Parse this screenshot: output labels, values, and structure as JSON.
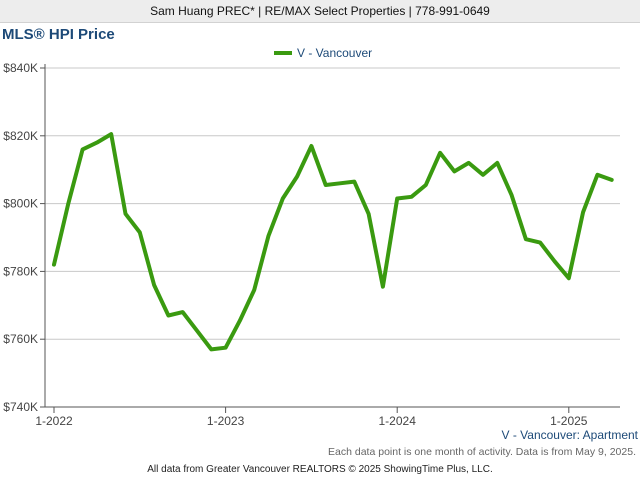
{
  "header": {
    "agent_line": "Sam Huang PREC* | RE/MAX Select Properties | 778-991-0649"
  },
  "chart_data": {
    "type": "line",
    "title": "MLS® HPI Price",
    "legend_position": "top",
    "series": [
      {
        "name": "V - Vancouver",
        "color": "#3a9a10",
        "x": [
          "2022-01",
          "2022-02",
          "2022-03",
          "2022-04",
          "2022-05",
          "2022-06",
          "2022-07",
          "2022-08",
          "2022-09",
          "2022-10",
          "2022-11",
          "2022-12",
          "2023-01",
          "2023-02",
          "2023-03",
          "2023-04",
          "2023-05",
          "2023-06",
          "2023-07",
          "2023-08",
          "2023-09",
          "2023-10",
          "2023-11",
          "2023-12",
          "2024-01",
          "2024-02",
          "2024-03",
          "2024-04",
          "2024-05",
          "2024-06",
          "2024-07",
          "2024-08",
          "2024-09",
          "2024-10",
          "2024-11",
          "2024-12",
          "2025-01",
          "2025-02",
          "2025-03",
          "2025-04"
        ],
        "values": [
          782000,
          800000,
          816000,
          818000,
          820500,
          797000,
          791500,
          776000,
          767000,
          768000,
          762500,
          757000,
          757500,
          765500,
          774500,
          790500,
          801500,
          808000,
          817000,
          805500,
          806000,
          806500,
          797000,
          775500,
          801500,
          802000,
          805500,
          815000,
          809500,
          812000,
          808500,
          812000,
          802500,
          789500,
          788500,
          783000,
          778000,
          797500,
          808500,
          807000
        ]
      }
    ],
    "xlabels": [
      "1-2022",
      "1-2023",
      "1-2024",
      "1-2025"
    ],
    "xlabel_dates": [
      "2022-01",
      "2023-01",
      "2024-01",
      "2025-01"
    ],
    "ylim": [
      740000,
      840000
    ],
    "yticks": [
      740000,
      760000,
      780000,
      800000,
      820000,
      840000
    ],
    "ytick_labels": [
      "$740K",
      "$760K",
      "$780K",
      "$800K",
      "$820K",
      "$840K"
    ],
    "grid": true,
    "subtitle_bottom_right": "V - Vancouver: Apartment"
  },
  "footer": {
    "note": "Each data point is one month of activity. Data is from May 9, 2025.",
    "credit": "All data from Greater Vancouver REALTORS © 2025 ShowingTime Plus, LLC."
  },
  "colors": {
    "title": "#1d4a78",
    "series": "#3a9a10",
    "grid": "#c8c8c8",
    "axis": "#555555"
  }
}
